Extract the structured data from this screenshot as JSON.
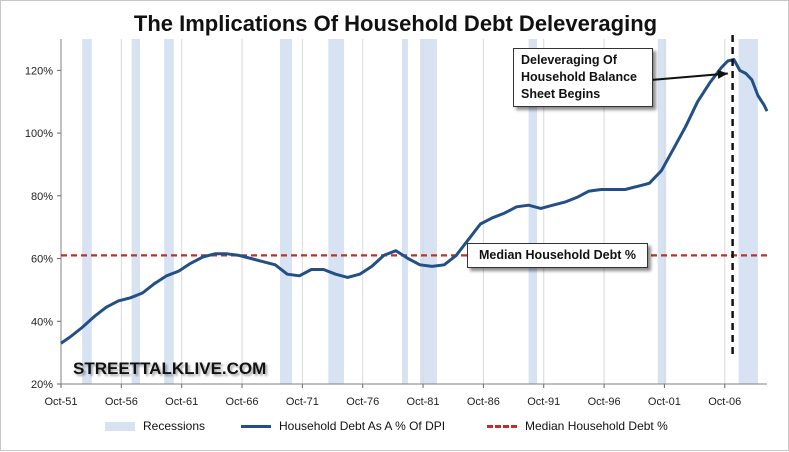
{
  "chart_data": {
    "type": "line",
    "title": "The Implications Of Household Debt Deleveraging",
    "xlabel": "",
    "ylabel": "",
    "x_range": [
      1951.75,
      2010.25
    ],
    "ylim": [
      20,
      130
    ],
    "y_ticks": [
      20,
      40,
      60,
      80,
      100,
      120
    ],
    "y_tick_labels": [
      "20%",
      "40%",
      "60%",
      "80%",
      "100%",
      "120%"
    ],
    "x_ticks": [
      1951.75,
      1956.75,
      1961.75,
      1966.75,
      1971.75,
      1976.75,
      1981.75,
      1986.75,
      1991.75,
      1996.75,
      2001.75,
      2006.75
    ],
    "x_tick_labels": [
      "Oct-51",
      "Oct-56",
      "Oct-61",
      "Oct-66",
      "Oct-71",
      "Oct-76",
      "Oct-81",
      "Oct-86",
      "Oct-91",
      "Oct-96",
      "Oct-01",
      "Oct-06"
    ],
    "grid": "vertical",
    "legend_position": "bottom",
    "recessions": [
      [
        1953.5,
        1954.3
      ],
      [
        1957.6,
        1958.3
      ],
      [
        1960.3,
        1961.1
      ],
      [
        1969.9,
        1970.9
      ],
      [
        1973.9,
        1975.2
      ],
      [
        1980.0,
        1980.5
      ],
      [
        1981.5,
        1982.9
      ],
      [
        1990.5,
        1991.2
      ],
      [
        2001.2,
        2001.9
      ],
      [
        2007.9,
        2009.5
      ]
    ],
    "series": [
      {
        "name": "Household Debt As A % Of DPI",
        "color": "#234f87",
        "x": [
          1951.75,
          1952.5,
          1953.5,
          1954.5,
          1955.5,
          1956.5,
          1957.5,
          1958.5,
          1959.5,
          1960.5,
          1961.5,
          1962.5,
          1963.5,
          1964.5,
          1965.5,
          1966.5,
          1967.5,
          1968.5,
          1969.5,
          1970.5,
          1971.5,
          1972.5,
          1973.5,
          1974.5,
          1975.5,
          1976.5,
          1977.5,
          1978.5,
          1979.5,
          1980.5,
          1981.5,
          1982.5,
          1983.5,
          1984.5,
          1985.5,
          1986.5,
          1987.5,
          1988.5,
          1989.5,
          1990.5,
          1991.5,
          1992.5,
          1993.5,
          1994.5,
          1995.5,
          1996.5,
          1997.5,
          1998.5,
          1999.5,
          2000.5,
          2001.5,
          2002.5,
          2003.5,
          2004.5,
          2005.5,
          2006.5,
          2007.0,
          2007.5,
          2008.0,
          2008.5,
          2009.0,
          2009.5,
          2010.0,
          2010.25
        ],
        "values": [
          33,
          35,
          38,
          41.5,
          44.5,
          46.5,
          47.5,
          49,
          52,
          54.5,
          56,
          58.5,
          60.5,
          61.5,
          61.5,
          61,
          60,
          59,
          58,
          55,
          54.5,
          56.5,
          56.5,
          55,
          54,
          55,
          57.5,
          61,
          62.5,
          60,
          58,
          57.5,
          58,
          61,
          66,
          71,
          73,
          74.5,
          76.5,
          77,
          76,
          77,
          78,
          79.5,
          81.5,
          82,
          82,
          82,
          83,
          84,
          88,
          95,
          102,
          110,
          116,
          121,
          123,
          123.5,
          120,
          119,
          117,
          112,
          109,
          107
        ]
      }
    ],
    "reference_lines": [
      {
        "name": "Median Household Debt %",
        "value": 61,
        "color": "#c0302b",
        "style": "dashed"
      }
    ],
    "vline": {
      "x": 2007.4,
      "style": "dashed",
      "color": "#111111"
    },
    "annotations": [
      {
        "text": "Deleveraging Of Household Balance Sheet Begins",
        "arrow_to": [
          2007.5,
          119
        ]
      },
      {
        "text": "Median Household Debt %"
      }
    ],
    "watermark": "STREETTALKLIVE.COM",
    "legend": [
      {
        "label": "Recessions",
        "kind": "band",
        "color": "#d7e3f3"
      },
      {
        "label": "Household Debt As A % Of DPI",
        "kind": "line",
        "color": "#234f87"
      },
      {
        "label": "Median Household Debt %",
        "kind": "dashed",
        "color": "#c0302b"
      }
    ]
  }
}
